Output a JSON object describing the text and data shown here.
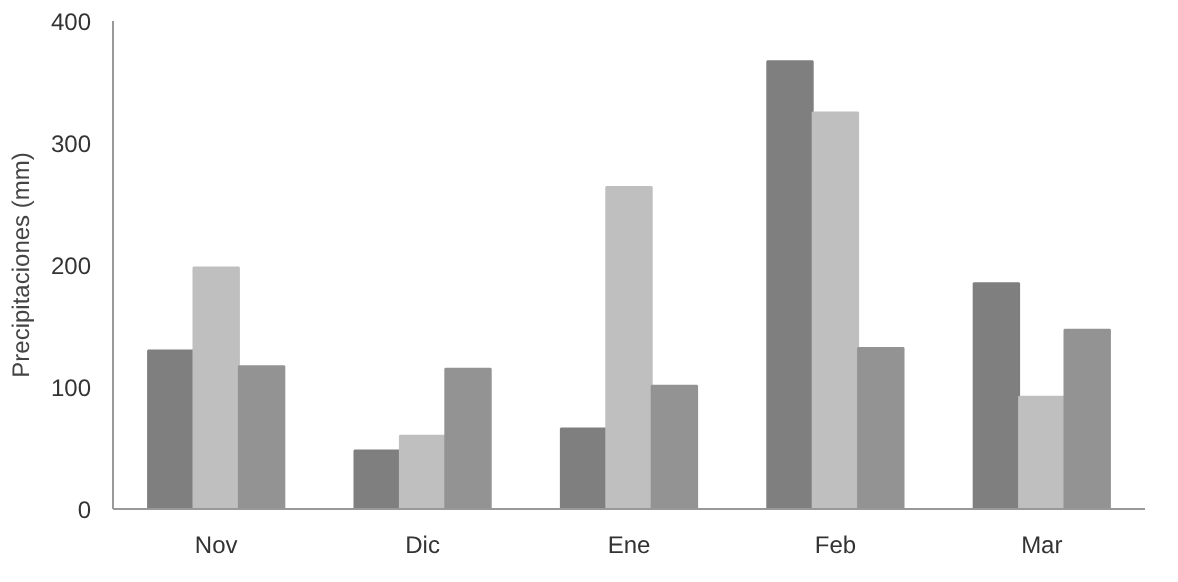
{
  "chart_data": {
    "type": "bar",
    "ylabel": "Precipitaciones (mm)",
    "categories": [
      "Nov",
      "Dic",
      "Ene",
      "Feb",
      "Mar"
    ],
    "series": [
      {
        "color": "#7f7f7f",
        "values": [
          130,
          48,
          66,
          367,
          185
        ]
      },
      {
        "color": "#bfbfbf",
        "values": [
          198,
          60,
          264,
          325,
          92
        ]
      },
      {
        "color": "#939393",
        "values": [
          117,
          115,
          101,
          132,
          147
        ]
      }
    ],
    "ylim": [
      0,
      400
    ],
    "yticks": [
      0,
      100,
      200,
      300,
      400
    ],
    "grid": false
  }
}
